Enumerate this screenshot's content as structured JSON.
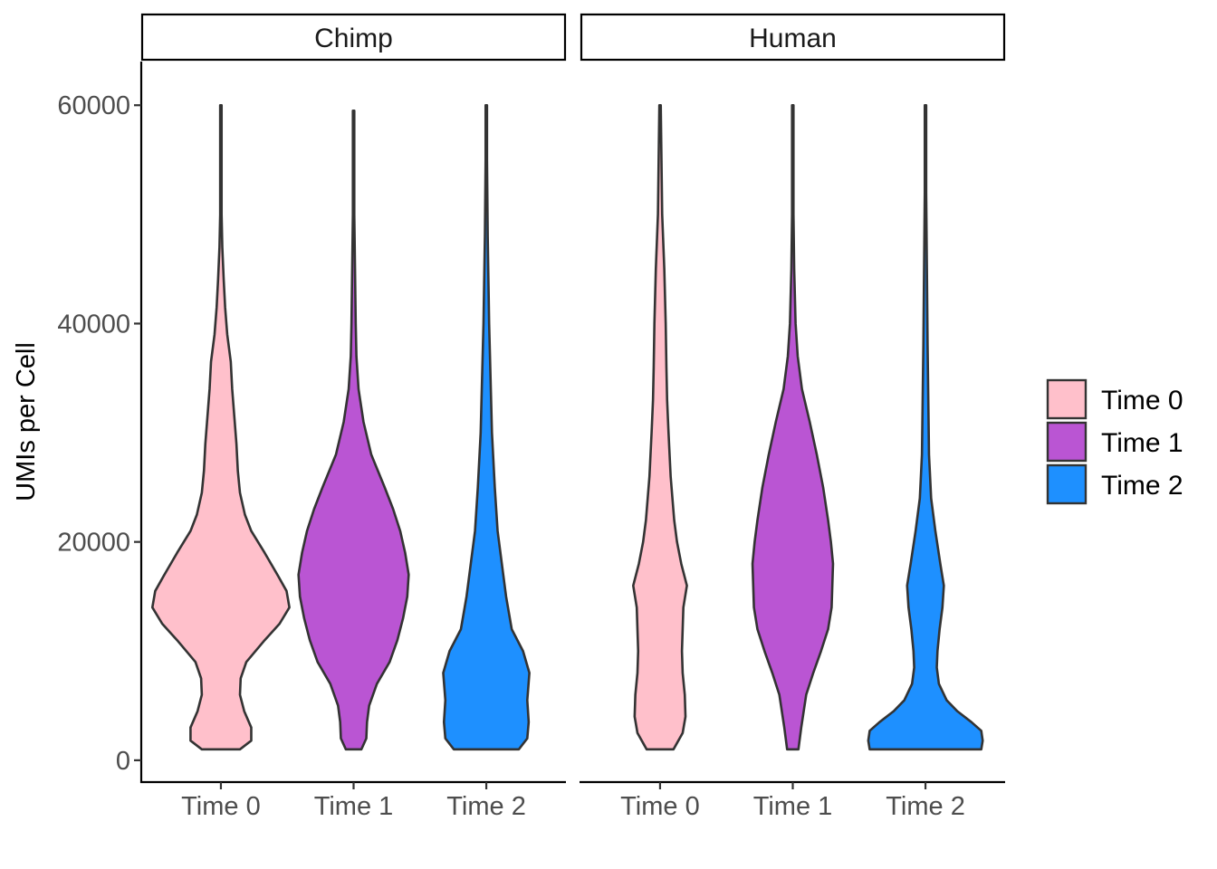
{
  "chart_data": {
    "type": "violin",
    "facets": [
      "Chimp",
      "Human"
    ],
    "categories": [
      "Time 0",
      "Time 1",
      "Time 2"
    ],
    "ylabel": "UMIs per Cell",
    "xlabel": "",
    "ylim": [
      -2000,
      64000
    ],
    "yticks": [
      0,
      20000,
      40000,
      60000
    ],
    "grid": false,
    "legend": {
      "position": "right",
      "entries": [
        {
          "label": "Time 0",
          "color": "#FFC0CB"
        },
        {
          "label": "Time 1",
          "color": "#BA55D3"
        },
        {
          "label": "Time 2",
          "color": "#1E90FF"
        }
      ]
    },
    "outline_color": "#333333",
    "series": [
      {
        "facet": "Chimp",
        "category": "Time 0",
        "color": "#FFC0CB",
        "profile": [
          [
            1000,
            0.27
          ],
          [
            1800,
            0.43
          ],
          [
            3000,
            0.43
          ],
          [
            4500,
            0.33
          ],
          [
            6000,
            0.27
          ],
          [
            7500,
            0.28
          ],
          [
            9000,
            0.36
          ],
          [
            11000,
            0.62
          ],
          [
            12500,
            0.83
          ],
          [
            14000,
            0.97
          ],
          [
            15500,
            0.93
          ],
          [
            17000,
            0.8
          ],
          [
            19000,
            0.62
          ],
          [
            21000,
            0.43
          ],
          [
            22500,
            0.34
          ],
          [
            24500,
            0.27
          ],
          [
            26500,
            0.24
          ],
          [
            29000,
            0.22
          ],
          [
            31500,
            0.19
          ],
          [
            34000,
            0.16
          ],
          [
            36500,
            0.14
          ],
          [
            39000,
            0.09
          ],
          [
            41500,
            0.06
          ],
          [
            44000,
            0.04
          ],
          [
            47000,
            0.02
          ],
          [
            50000,
            0.01
          ],
          [
            60000,
            0.01
          ]
        ]
      },
      {
        "facet": "Chimp",
        "category": "Time 1",
        "color": "#BA55D3",
        "profile": [
          [
            1000,
            0.11
          ],
          [
            2000,
            0.18
          ],
          [
            3500,
            0.19
          ],
          [
            5000,
            0.22
          ],
          [
            7000,
            0.33
          ],
          [
            9000,
            0.51
          ],
          [
            11000,
            0.62
          ],
          [
            13000,
            0.7
          ],
          [
            15000,
            0.76
          ],
          [
            17000,
            0.78
          ],
          [
            19000,
            0.73
          ],
          [
            21000,
            0.66
          ],
          [
            23000,
            0.56
          ],
          [
            25000,
            0.44
          ],
          [
            28000,
            0.25
          ],
          [
            31000,
            0.14
          ],
          [
            34000,
            0.07
          ],
          [
            37000,
            0.04
          ],
          [
            40000,
            0.03
          ],
          [
            45000,
            0.02
          ],
          [
            50000,
            0.01
          ],
          [
            59500,
            0.01
          ]
        ]
      },
      {
        "facet": "Chimp",
        "category": "Time 2",
        "color": "#1E90FF",
        "profile": [
          [
            1000,
            0.46
          ],
          [
            2000,
            0.58
          ],
          [
            3500,
            0.6
          ],
          [
            5500,
            0.58
          ],
          [
            8000,
            0.61
          ],
          [
            10000,
            0.52
          ],
          [
            12000,
            0.36
          ],
          [
            15000,
            0.28
          ],
          [
            18000,
            0.22
          ],
          [
            21000,
            0.16
          ],
          [
            25000,
            0.12
          ],
          [
            30000,
            0.08
          ],
          [
            35000,
            0.06
          ],
          [
            40000,
            0.04
          ],
          [
            48000,
            0.02
          ],
          [
            55000,
            0.01
          ],
          [
            60000,
            0.01
          ]
        ]
      },
      {
        "facet": "Human",
        "category": "Time 0",
        "color": "#FFC0CB",
        "profile": [
          [
            1000,
            0.19
          ],
          [
            2500,
            0.32
          ],
          [
            4000,
            0.36
          ],
          [
            6000,
            0.35
          ],
          [
            8000,
            0.32
          ],
          [
            10000,
            0.31
          ],
          [
            12000,
            0.32
          ],
          [
            14000,
            0.33
          ],
          [
            16000,
            0.38
          ],
          [
            18000,
            0.3
          ],
          [
            20000,
            0.24
          ],
          [
            22000,
            0.2
          ],
          [
            26000,
            0.15
          ],
          [
            30000,
            0.12
          ],
          [
            33000,
            0.1
          ],
          [
            36000,
            0.09
          ],
          [
            40000,
            0.08
          ],
          [
            45000,
            0.06
          ],
          [
            50000,
            0.03
          ],
          [
            55000,
            0.02
          ],
          [
            60000,
            0.01
          ]
        ]
      },
      {
        "facet": "Human",
        "category": "Time 1",
        "color": "#BA55D3",
        "profile": [
          [
            1000,
            0.08
          ],
          [
            3000,
            0.12
          ],
          [
            6000,
            0.19
          ],
          [
            8000,
            0.29
          ],
          [
            10000,
            0.4
          ],
          [
            12000,
            0.5
          ],
          [
            14000,
            0.55
          ],
          [
            16000,
            0.56
          ],
          [
            18000,
            0.57
          ],
          [
            20000,
            0.54
          ],
          [
            22000,
            0.5
          ],
          [
            25000,
            0.43
          ],
          [
            28000,
            0.34
          ],
          [
            31000,
            0.24
          ],
          [
            34000,
            0.13
          ],
          [
            37000,
            0.07
          ],
          [
            40000,
            0.04
          ],
          [
            45000,
            0.02
          ],
          [
            50000,
            0.01
          ],
          [
            60000,
            0.01
          ]
        ]
      },
      {
        "facet": "Human",
        "category": "Time 2",
        "color": "#1E90FF",
        "profile": [
          [
            1000,
            0.79
          ],
          [
            1800,
            0.81
          ],
          [
            2700,
            0.79
          ],
          [
            3500,
            0.65
          ],
          [
            4500,
            0.45
          ],
          [
            5500,
            0.3
          ],
          [
            7000,
            0.19
          ],
          [
            8500,
            0.16
          ],
          [
            10000,
            0.17
          ],
          [
            12000,
            0.2
          ],
          [
            14000,
            0.24
          ],
          [
            16000,
            0.26
          ],
          [
            18000,
            0.21
          ],
          [
            21000,
            0.14
          ],
          [
            24000,
            0.08
          ],
          [
            28000,
            0.05
          ],
          [
            33000,
            0.04
          ],
          [
            38000,
            0.03
          ],
          [
            45000,
            0.02
          ],
          [
            52000,
            0.01
          ],
          [
            60000,
            0.01
          ]
        ]
      }
    ]
  }
}
